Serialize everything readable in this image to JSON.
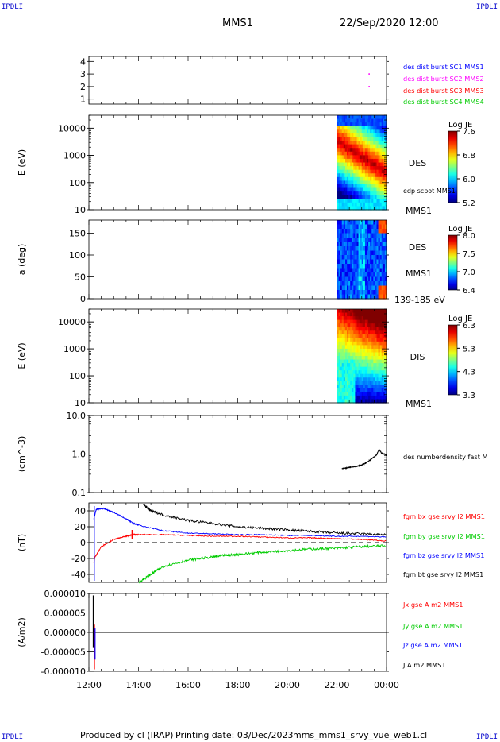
{
  "corners": {
    "tl": "IPDLI",
    "tr": "IPDLI",
    "bl": "IPDLI",
    "br": "IPDLI"
  },
  "header": {
    "spacecraft": "MMS1",
    "datetime": "22/Sep/2020 12:00"
  },
  "footer": {
    "produced": "Produced by cl (IRAP)",
    "printing": "Printing date: 03/Dec/2023",
    "script": "mms_mms1_srvy_vue_web1.cl"
  },
  "colors": {
    "blue": "#0000ff",
    "magenta": "#ff00ff",
    "red": "#ff0000",
    "green": "#00cc00",
    "black": "#000000"
  },
  "chart_data": {
    "type": "multi-panel",
    "x_ticks": [
      "12:00",
      "14:00",
      "16:00",
      "18:00",
      "20:00",
      "22:00",
      "00:00"
    ],
    "x_range_hours": [
      12,
      24
    ],
    "panels": [
      {
        "id": "burst",
        "type": "scatter",
        "ylim": [
          0.6,
          4.4
        ],
        "yticks": [
          "1",
          "2",
          "3",
          "4"
        ],
        "legend": [
          "des dist burst SC1 MMS1",
          "des dist burst SC2 MMS2",
          "des dist burst SC3 MMS3",
          "des dist burst SC4 MMS4"
        ],
        "points": [
          {
            "x": 23.3,
            "y": 3
          },
          {
            "x": 23.3,
            "y": 2
          }
        ]
      },
      {
        "id": "des-energy",
        "type": "heatmap",
        "ylabel": "E (eV)",
        "ylog": true,
        "ylim": [
          10,
          30000
        ],
        "yticks": [
          "10",
          "100",
          "1000",
          "10000"
        ],
        "label": "DES",
        "sublabel": "edp scpot MMS1",
        "probe": "MMS1",
        "colorbar": {
          "title": "Log JE",
          "ticks": [
            "7.6",
            "6.8",
            "6.0",
            "5.2"
          ],
          "range": [
            5.2,
            7.6
          ]
        },
        "data_start_hour": 22.0
      },
      {
        "id": "des-pitch",
        "type": "heatmap",
        "ylabel": "a (deg)",
        "ylim": [
          0,
          180
        ],
        "yticks": [
          "0",
          "50",
          "100",
          "150"
        ],
        "label": "DES",
        "probe": "MMS1",
        "energy_range": "139-185 eV",
        "colorbar": {
          "title": "Log JE",
          "ticks": [
            "8.0",
            "7.5",
            "7.0",
            "6.4"
          ],
          "range": [
            6.4,
            8.0
          ]
        },
        "data_start_hour": 22.0
      },
      {
        "id": "dis-energy",
        "type": "heatmap",
        "ylabel": "E (eV)",
        "ylog": true,
        "ylim": [
          10,
          30000
        ],
        "yticks": [
          "10",
          "100",
          "1000",
          "10000"
        ],
        "label": "DIS",
        "probe": "MMS1",
        "colorbar": {
          "title": "Log JE",
          "ticks": [
            "6.3",
            "5.3",
            "4.3",
            "3.3"
          ],
          "range": [
            3.3,
            6.3
          ]
        },
        "data_start_hour": 22.0
      },
      {
        "id": "density",
        "type": "line",
        "ylabel": "(cm^-3)",
        "ylog": true,
        "ylim": [
          0.1,
          10
        ],
        "yticks": [
          "0.1",
          "1.0",
          "10.0"
        ],
        "legend": [
          "des numberdensity fast M"
        ],
        "series": [
          {
            "x": [
              22.2,
              22.5,
              22.8,
              23.0,
              23.2,
              23.4,
              23.6,
              23.7,
              23.8,
              24.0
            ],
            "y": [
              0.42,
              0.45,
              0.48,
              0.52,
              0.6,
              0.75,
              0.95,
              1.3,
              1.05,
              0.95
            ]
          }
        ]
      },
      {
        "id": "bfield",
        "type": "line",
        "ylabel": "(nT)",
        "ylim": [
          -50,
          50
        ],
        "yticks": [
          "-40",
          "-20",
          "0",
          "20",
          "40"
        ],
        "legend": [
          "fgm bx gse srvy l2 MMS1",
          "fgm by gse srvy l2 MMS1",
          "fgm bz gse srvy l2 MMS1",
          "fgm bt gse srvy l2 MMS1"
        ],
        "series": [
          {
            "name": "bx",
            "x": [
              12.2,
              12.25,
              12.5,
              13.0,
              13.5,
              13.75,
              14.0,
              15.0,
              16.0,
              17.0,
              18.0,
              19.0,
              20.0,
              21.0,
              22.0,
              23.0,
              24.0
            ],
            "y": [
              -25,
              -18,
              -5,
              4,
              8,
              10,
              10,
              10,
              9,
              8,
              8,
              7,
              6,
              6,
              5,
              4,
              2
            ]
          },
          {
            "name": "by",
            "x": [
              14.0,
              14.5,
              15.0,
              16.0,
              17.0,
              17.5,
              18.0,
              19.0,
              20.0,
              21.0,
              22.0,
              23.0,
              24.0
            ],
            "y": [
              -50,
              -40,
              -30,
              -22,
              -18,
              -16,
              -15,
              -12,
              -10,
              -8,
              -7,
              -5,
              -4
            ]
          },
          {
            "name": "bz",
            "x": [
              12.2,
              12.3,
              12.6,
              13.0,
              13.5,
              13.8,
              14.0,
              15.0,
              16.0,
              17.0,
              18.0,
              19.0,
              20.0,
              21.0,
              22.0,
              23.0,
              24.0
            ],
            "y": [
              30,
              42,
              43,
              38,
              30,
              24,
              22,
              15,
              12,
              11,
              10,
              10,
              9,
              9,
              8,
              8,
              7
            ]
          },
          {
            "name": "bt",
            "x": [
              14.2,
              14.5,
              15.0,
              16.0,
              17.0,
              18.0,
              19.0,
              20.0,
              21.0,
              22.0,
              23.0,
              24.0
            ],
            "y": [
              48,
              40,
              35,
              28,
              24,
              20,
              18,
              16,
              14,
              12,
              11,
              10
            ]
          }
        ]
      },
      {
        "id": "current",
        "type": "line",
        "ylabel": "(A/m2)",
        "ylim": [
          -1e-05,
          1e-05
        ],
        "yticks": [
          "-0.000010",
          "-0.000005",
          "0.000000",
          "0.000005",
          "0.000010"
        ],
        "legend": [
          "Jx gse A m2 MMS1",
          "Jy gse A m2 MMS1",
          "Jz gse A m2 MMS1",
          "J A m2 MMS1"
        ]
      }
    ]
  }
}
